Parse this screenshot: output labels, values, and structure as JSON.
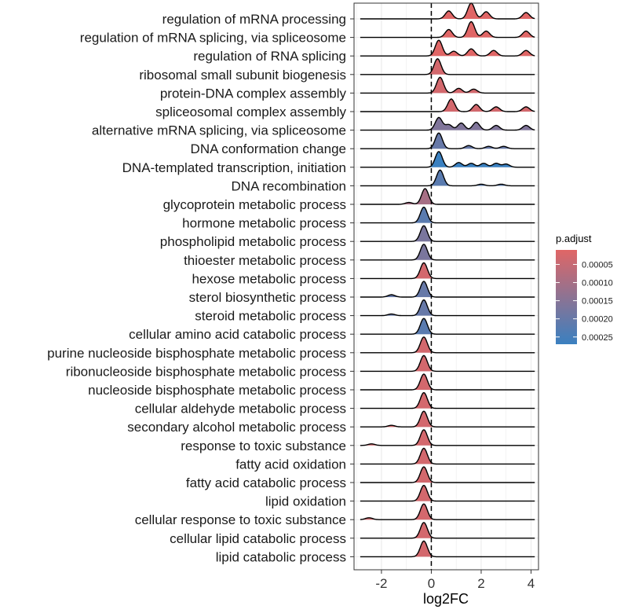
{
  "chart_data": {
    "type": "ridgeline",
    "xlabel": "log2FC",
    "ylabel": "",
    "xlim": [
      -3.1,
      4.3
    ],
    "xticks": [
      -2,
      0,
      2,
      4
    ],
    "xtick_labels": [
      "-2",
      "0",
      "2",
      "4"
    ],
    "vline_x": 0,
    "grid": true,
    "legend": {
      "title": "p.adjust",
      "placement": "right",
      "range": [
        1e-05,
        0.00027
      ],
      "ticks": [
        5e-05,
        0.0001,
        0.00015,
        0.0002,
        0.00025
      ],
      "tick_labels": [
        "0.00005",
        "0.00010",
        "0.00015",
        "0.00020",
        "0.00025"
      ],
      "low_color": "#E06666",
      "high_color": "#3A80C0"
    },
    "series": [
      {
        "name": "regulation of mRNA processing",
        "p_adjust": 1e-05,
        "peaks": [
          [
            0.7,
            0.5
          ],
          [
            1.6,
            1.0
          ],
          [
            2.2,
            0.45
          ],
          [
            3.8,
            0.4
          ]
        ]
      },
      {
        "name": "regulation of mRNA splicing, via spliceosome",
        "p_adjust": 1e-05,
        "peaks": [
          [
            0.7,
            0.5
          ],
          [
            1.6,
            1.0
          ],
          [
            2.2,
            0.4
          ],
          [
            3.8,
            0.4
          ]
        ]
      },
      {
        "name": "regulation of RNA splicing",
        "p_adjust": 1e-05,
        "peaks": [
          [
            0.3,
            1.0
          ],
          [
            0.9,
            0.3
          ],
          [
            1.6,
            0.45
          ],
          [
            2.5,
            0.35
          ],
          [
            3.8,
            0.35
          ]
        ]
      },
      {
        "name": "ribosomal small subunit biogenesis",
        "p_adjust": 3e-05,
        "peaks": [
          [
            0.25,
            1.0
          ]
        ]
      },
      {
        "name": "protein-DNA complex assembly",
        "p_adjust": 3e-05,
        "peaks": [
          [
            0.35,
            1.0
          ],
          [
            1.1,
            0.3
          ],
          [
            1.7,
            0.25
          ]
        ]
      },
      {
        "name": "spliceosomal complex assembly",
        "p_adjust": 3e-05,
        "peaks": [
          [
            0.8,
            0.8
          ],
          [
            1.8,
            0.45
          ],
          [
            2.6,
            0.3
          ],
          [
            3.8,
            0.3
          ]
        ]
      },
      {
        "name": "alternative mRNA splicing, via spliceosome",
        "p_adjust": 0.00016,
        "peaks": [
          [
            0.3,
            0.8
          ],
          [
            0.7,
            0.35
          ],
          [
            1.2,
            0.45
          ],
          [
            1.8,
            0.5
          ],
          [
            2.6,
            0.3
          ],
          [
            3.8,
            0.3
          ]
        ]
      },
      {
        "name": "DNA conformation change",
        "p_adjust": 0.0002,
        "peaks": [
          [
            0.3,
            1.0
          ],
          [
            1.5,
            0.2
          ],
          [
            2.3,
            0.15
          ],
          [
            2.9,
            0.15
          ]
        ]
      },
      {
        "name": "DNA-templated transcription, initiation",
        "p_adjust": 0.00027,
        "peaks": [
          [
            0.3,
            1.0
          ],
          [
            1.1,
            0.3
          ],
          [
            1.6,
            0.25
          ],
          [
            2.1,
            0.25
          ],
          [
            2.6,
            0.25
          ],
          [
            3.0,
            0.2
          ]
        ]
      },
      {
        "name": "DNA recombination",
        "p_adjust": 0.00022,
        "peaks": [
          [
            0.35,
            1.0
          ],
          [
            2.0,
            0.1
          ],
          [
            2.8,
            0.1
          ]
        ]
      },
      {
        "name": "glycoprotein metabolic process",
        "p_adjust": 0.0001,
        "peaks": [
          [
            -0.25,
            1.0
          ],
          [
            -0.9,
            0.12
          ]
        ]
      },
      {
        "name": "hormone metabolic process",
        "p_adjust": 0.00022,
        "peaks": [
          [
            -0.3,
            1.0
          ]
        ]
      },
      {
        "name": "phospholipid metabolic process",
        "p_adjust": 0.00017,
        "peaks": [
          [
            -0.3,
            1.0
          ]
        ]
      },
      {
        "name": "thioester metabolic process",
        "p_adjust": 0.00017,
        "peaks": [
          [
            -0.3,
            1.0
          ]
        ]
      },
      {
        "name": "hexose metabolic process",
        "p_adjust": 3e-05,
        "peaks": [
          [
            -0.3,
            1.0
          ]
        ]
      },
      {
        "name": "sterol biosynthetic process",
        "p_adjust": 0.0002,
        "peaks": [
          [
            -0.3,
            1.0
          ],
          [
            -1.6,
            0.15
          ]
        ]
      },
      {
        "name": "steroid metabolic process",
        "p_adjust": 0.0002,
        "peaks": [
          [
            -0.3,
            1.0
          ],
          [
            -1.6,
            0.1
          ]
        ]
      },
      {
        "name": "cellular amino acid catabolic process",
        "p_adjust": 0.00022,
        "peaks": [
          [
            -0.3,
            1.0
          ]
        ]
      },
      {
        "name": "purine nucleoside bisphosphate metabolic process",
        "p_adjust": 3e-05,
        "peaks": [
          [
            -0.3,
            1.0
          ]
        ]
      },
      {
        "name": "ribonucleoside bisphosphate metabolic process",
        "p_adjust": 3e-05,
        "peaks": [
          [
            -0.3,
            1.0
          ]
        ]
      },
      {
        "name": "nucleoside bisphosphate metabolic process",
        "p_adjust": 3e-05,
        "peaks": [
          [
            -0.3,
            1.0
          ]
        ]
      },
      {
        "name": "cellular aldehyde metabolic process",
        "p_adjust": 3e-05,
        "peaks": [
          [
            -0.3,
            1.0
          ]
        ]
      },
      {
        "name": "secondary alcohol metabolic process",
        "p_adjust": 3e-05,
        "peaks": [
          [
            -0.3,
            1.0
          ],
          [
            -1.6,
            0.1
          ]
        ]
      },
      {
        "name": "response to toxic substance",
        "p_adjust": 3e-05,
        "peaks": [
          [
            -0.3,
            1.0
          ],
          [
            -2.4,
            0.1
          ]
        ]
      },
      {
        "name": "fatty acid oxidation",
        "p_adjust": 3e-05,
        "peaks": [
          [
            -0.3,
            1.0
          ]
        ]
      },
      {
        "name": "fatty acid catabolic process",
        "p_adjust": 3e-05,
        "peaks": [
          [
            -0.3,
            1.0
          ]
        ]
      },
      {
        "name": "lipid oxidation",
        "p_adjust": 3e-05,
        "peaks": [
          [
            -0.3,
            1.0
          ]
        ]
      },
      {
        "name": "cellular response to toxic substance",
        "p_adjust": 3e-05,
        "peaks": [
          [
            -0.3,
            1.0
          ],
          [
            -2.5,
            0.12
          ]
        ]
      },
      {
        "name": "cellular lipid catabolic process",
        "p_adjust": 3e-05,
        "peaks": [
          [
            -0.3,
            1.0
          ]
        ]
      },
      {
        "name": "lipid catabolic process",
        "p_adjust": 3e-05,
        "peaks": [
          [
            -0.3,
            1.0
          ]
        ]
      }
    ]
  }
}
